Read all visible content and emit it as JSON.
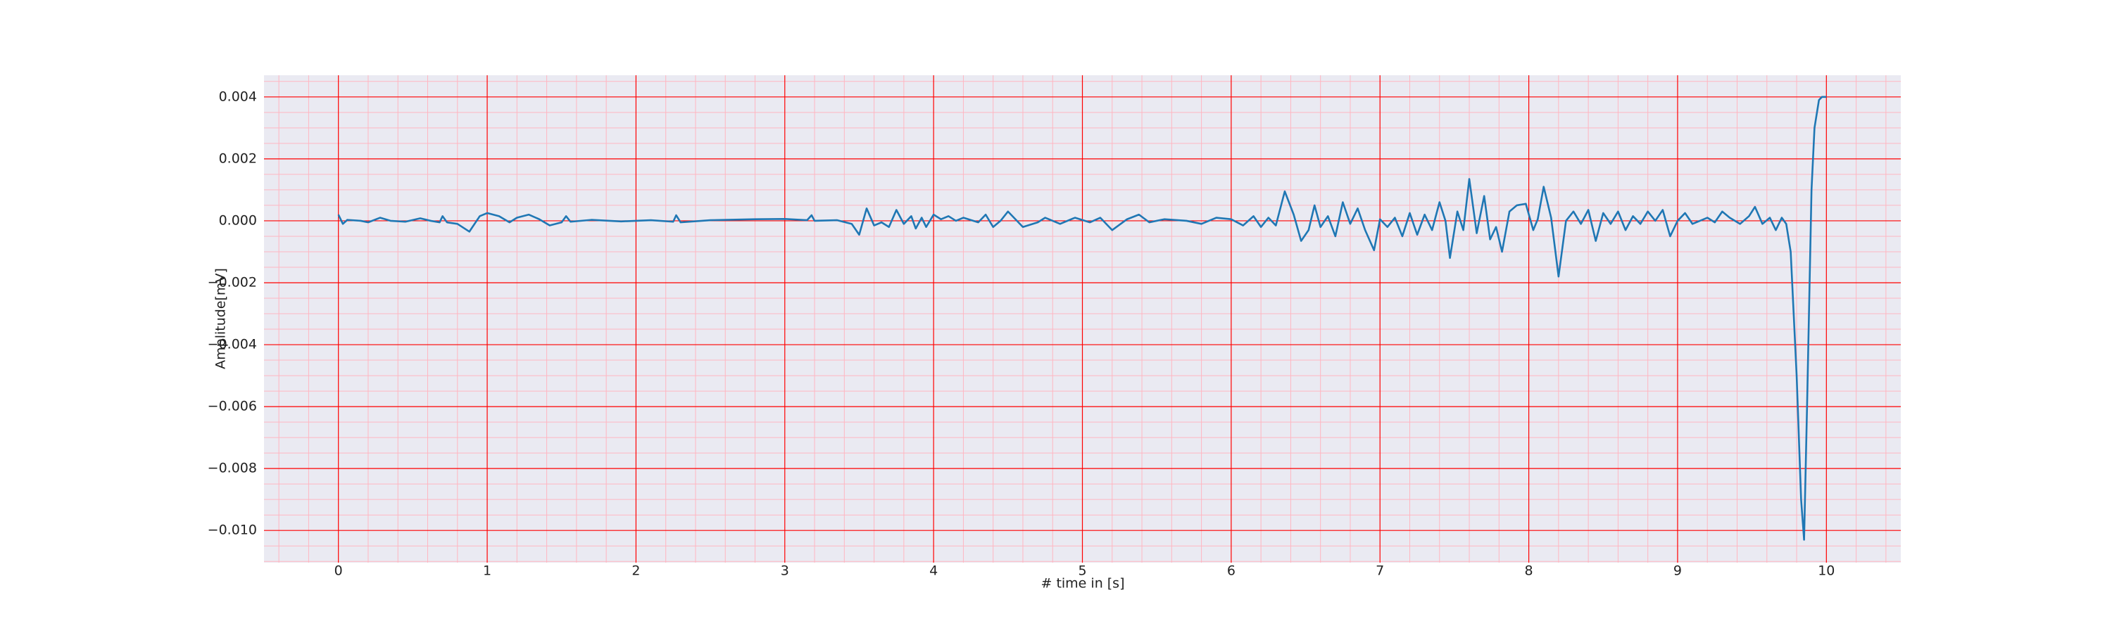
{
  "chart_data": {
    "type": "line",
    "xlabel": "# time in [s]",
    "ylabel": "Amplitude[mV]",
    "xlim": [
      -0.5,
      10.5
    ],
    "ylim": [
      -0.01104,
      0.0047
    ],
    "xticks": [
      0,
      1,
      2,
      3,
      4,
      5,
      6,
      7,
      8,
      9,
      10
    ],
    "yticks": [
      {
        "value": -0.01,
        "label": "−0.010"
      },
      {
        "value": -0.008,
        "label": "−0.008"
      },
      {
        "value": -0.006,
        "label": "−0.006"
      },
      {
        "value": -0.004,
        "label": "−0.004"
      },
      {
        "value": -0.002,
        "label": "−0.002"
      },
      {
        "value": 0,
        "label": "0.000"
      },
      0.002,
      0.004
    ],
    "xminorticks": [
      -0.4,
      -0.2,
      0.2,
      0.4,
      0.6,
      0.8,
      1.2,
      1.4,
      1.6,
      1.8,
      2.2,
      2.4,
      2.6,
      2.8,
      3.2,
      3.4,
      3.6,
      3.8,
      4.2,
      4.4,
      4.6,
      4.8,
      5.2,
      5.4,
      5.6,
      5.8,
      6.2,
      6.4,
      6.6,
      6.8,
      7.2,
      7.4,
      7.6,
      7.8,
      8.2,
      8.4,
      8.6,
      8.8,
      9.2,
      9.4,
      9.6,
      9.8,
      10.2,
      10.4
    ],
    "yminorticks": [
      -0.011,
      -0.0105,
      -0.0095,
      -0.009,
      -0.0085,
      -0.0075,
      -0.007,
      -0.0065,
      -0.0055,
      -0.005,
      -0.0045,
      -0.0035,
      -0.003,
      -0.0025,
      -0.0015,
      -0.001,
      -0.0005,
      0.0005,
      0.001,
      0.0015,
      0.0025,
      0.003,
      0.0035,
      0.0045
    ],
    "grid": true,
    "minor_grid": true,
    "grid_color": "#ff0000",
    "minor_grid_color": "#ffb6c1",
    "background": "#eaeaf2",
    "color": "#1f77b4",
    "x": [
      0,
      0.03,
      0.06,
      0.15,
      0.2,
      0.28,
      0.35,
      0.45,
      0.55,
      0.62,
      0.68,
      0.7,
      0.73,
      0.8,
      0.88,
      0.95,
      1.0,
      1.08,
      1.15,
      1.2,
      1.28,
      1.35,
      1.42,
      1.5,
      1.53,
      1.56,
      1.7,
      1.9,
      2.1,
      2.25,
      2.27,
      2.3,
      2.5,
      2.8,
      3.0,
      3.15,
      3.18,
      3.2,
      3.35,
      3.45,
      3.5,
      3.55,
      3.6,
      3.65,
      3.7,
      3.75,
      3.8,
      3.85,
      3.88,
      3.92,
      3.95,
      4.0,
      4.05,
      4.1,
      4.15,
      4.2,
      4.3,
      4.35,
      4.4,
      4.45,
      4.5,
      4.55,
      4.6,
      4.7,
      4.75,
      4.85,
      4.95,
      5.05,
      5.12,
      5.2,
      5.3,
      5.38,
      5.45,
      5.55,
      5.7,
      5.8,
      5.9,
      6.0,
      6.08,
      6.15,
      6.2,
      6.25,
      6.3,
      6.36,
      6.42,
      6.47,
      6.52,
      6.56,
      6.6,
      6.65,
      6.7,
      6.75,
      6.8,
      6.85,
      6.9,
      6.96,
      7.0,
      7.05,
      7.1,
      7.15,
      7.2,
      7.25,
      7.3,
      7.35,
      7.4,
      7.44,
      7.47,
      7.52,
      7.56,
      7.6,
      7.65,
      7.7,
      7.74,
      7.78,
      7.82,
      7.87,
      7.92,
      7.98,
      8.03,
      8.06,
      8.1,
      8.15,
      8.2,
      8.25,
      8.3,
      8.35,
      8.4,
      8.45,
      8.5,
      8.55,
      8.6,
      8.65,
      8.7,
      8.75,
      8.8,
      8.85,
      8.9,
      8.95,
      9.0,
      9.05,
      9.1,
      9.2,
      9.25,
      9.3,
      9.35,
      9.42,
      9.48,
      9.52,
      9.57,
      9.62,
      9.66,
      9.7,
      9.73,
      9.76,
      9.8,
      9.83,
      9.85,
      9.87,
      9.9,
      9.92,
      9.95,
      9.97,
      10.0
    ],
    "values": [
      0.0002,
      -0.0001,
      3e-05,
      0,
      -5e-05,
      0.0001,
      0,
      -3e-05,
      8e-05,
      0,
      -5e-05,
      0.00015,
      -5e-05,
      -0.0001,
      -0.00035,
      0.00015,
      0.00025,
      0.00015,
      -5e-05,
      0.0001,
      0.0002,
      5e-05,
      -0.00015,
      -5e-05,
      0.00015,
      -3e-05,
      3e-05,
      -2e-05,
      2e-05,
      -3e-05,
      0.00018,
      -5e-05,
      2e-05,
      5e-05,
      6e-05,
      2e-05,
      0.00018,
      0,
      2e-05,
      -0.0001,
      -0.00045,
      0.0004,
      -0.00015,
      -5e-05,
      -0.0002,
      0.00035,
      -0.0001,
      0.00015,
      -0.00025,
      0.0001,
      -0.0002,
      0.0002,
      5e-05,
      0.00015,
      0,
      0.0001,
      -5e-05,
      0.0002,
      -0.0002,
      0,
      0.0003,
      5e-05,
      -0.0002,
      -5e-05,
      0.0001,
      -0.0001,
      0.0001,
      -5e-05,
      0.0001,
      -0.0003,
      5e-05,
      0.0002,
      -5e-05,
      5e-05,
      0,
      -0.0001,
      0.0001,
      5e-05,
      -0.00015,
      0.00015,
      -0.0002,
      0.0001,
      -0.00015,
      0.00095,
      0.0002,
      -0.00065,
      -0.0003,
      0.0005,
      -0.0002,
      0.00015,
      -0.0005,
      0.0006,
      -0.0001,
      0.0004,
      -0.0003,
      -0.00095,
      5e-05,
      -0.0002,
      0.0001,
      -0.0005,
      0.00025,
      -0.00045,
      0.0002,
      -0.0003,
      0.0006,
      0,
      -0.0012,
      0.0003,
      -0.0003,
      0.00135,
      -0.0004,
      0.0008,
      -0.0006,
      -0.0002,
      -0.001,
      0.0003,
      0.0005,
      0.00055,
      -0.0003,
      5e-05,
      0.0011,
      0.0001,
      -0.0018,
      0,
      0.0003,
      -0.0001,
      0.00035,
      -0.00065,
      0.00025,
      -0.0001,
      0.0003,
      -0.0003,
      0.00015,
      -0.0001,
      0.0003,
      0,
      0.00035,
      -0.0005,
      0,
      0.00025,
      -0.0001,
      0.0001,
      -5e-05,
      0.0003,
      0.0001,
      -0.0001,
      0.00015,
      0.00045,
      -0.0001,
      0.0001,
      -0.0003,
      0.0001,
      -0.0001,
      -0.001,
      -0.005,
      -0.009,
      -0.0103,
      -0.006,
      0.001,
      0.003,
      0.0039,
      0.004,
      0.004
    ]
  }
}
